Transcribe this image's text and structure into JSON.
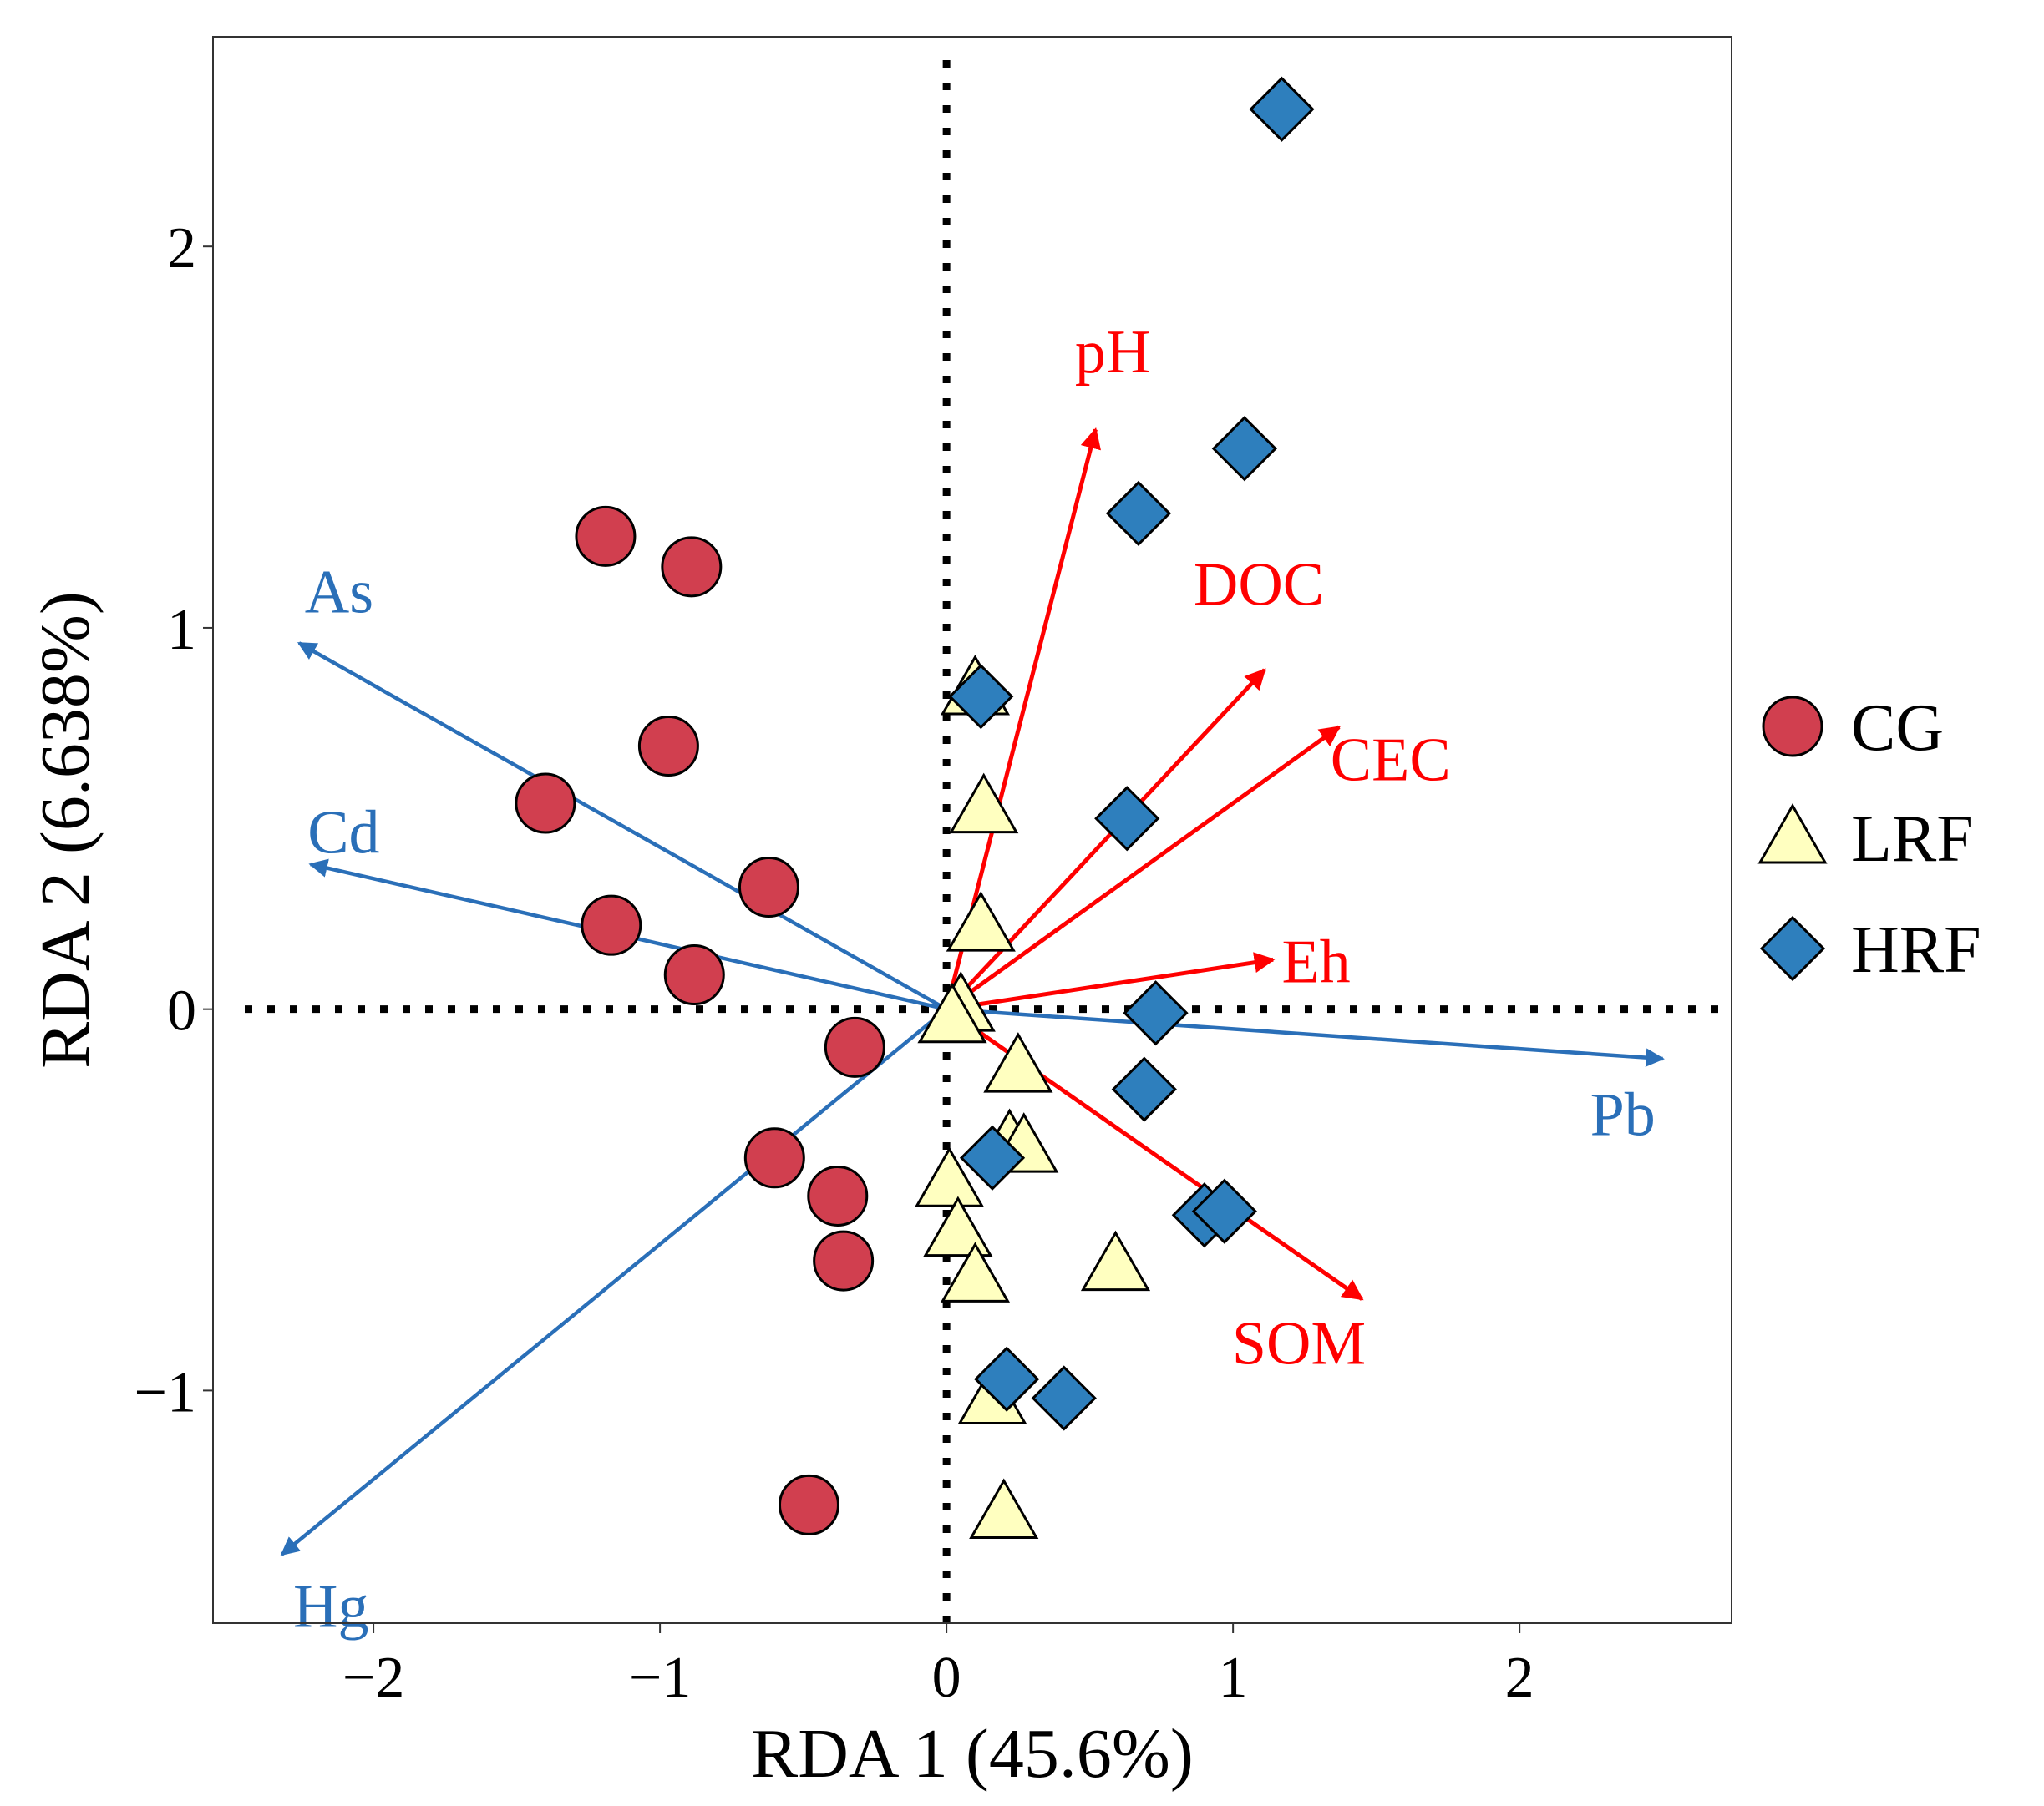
{
  "chart_data": {
    "type": "scatter",
    "title": "",
    "xlabel": "RDA 1 (45.6%)",
    "ylabel": "RDA 2 (6.638%)",
    "xlim": [
      -2.56,
      2.74
    ],
    "ylim": [
      -1.61,
      2.55
    ],
    "xticks": [
      -2,
      -1,
      0,
      1,
      2
    ],
    "yticks": [
      -1,
      0,
      1,
      2
    ],
    "xtick_labels": [
      "−2",
      "−1",
      "0",
      "1",
      "2"
    ],
    "ytick_labels": [
      "−1",
      "0",
      "1",
      "2"
    ],
    "grid": false,
    "reference_lines": {
      "x": 0,
      "y": 0,
      "style": "dotted"
    },
    "legend_position": "right",
    "series": [
      {
        "name": "CG",
        "marker": "circle",
        "color": "#d13f4f",
        "points": [
          [
            -1.19,
            1.24
          ],
          [
            -0.89,
            1.16
          ],
          [
            -0.97,
            0.69
          ],
          [
            -1.4,
            0.54
          ],
          [
            -0.62,
            0.32
          ],
          [
            -1.17,
            0.22
          ],
          [
            -0.88,
            0.09
          ],
          [
            -0.32,
            -0.1
          ],
          [
            -0.6,
            -0.39
          ],
          [
            -0.38,
            -0.49
          ],
          [
            -0.36,
            -0.66
          ],
          [
            -0.48,
            -1.3
          ]
        ]
      },
      {
        "name": "LRF",
        "marker": "triangle",
        "color": "#ffffc0",
        "points": [
          [
            0.1,
            0.84
          ],
          [
            0.13,
            0.53
          ],
          [
            0.12,
            0.22
          ],
          [
            0.05,
            0.01
          ],
          [
            0.02,
            -0.02
          ],
          [
            0.25,
            -0.15
          ],
          [
            0.22,
            -0.35
          ],
          [
            0.27,
            -0.36
          ],
          [
            0.01,
            -0.45
          ],
          [
            0.04,
            -0.58
          ],
          [
            0.1,
            -0.7
          ],
          [
            0.59,
            -0.67
          ],
          [
            0.16,
            -1.02
          ],
          [
            0.2,
            -1.32
          ]
        ]
      },
      {
        "name": "HRF",
        "marker": "diamond",
        "color": "#2e7fbd",
        "points": [
          [
            1.17,
            2.36
          ],
          [
            1.04,
            1.47
          ],
          [
            0.67,
            1.3
          ],
          [
            0.12,
            0.82
          ],
          [
            0.63,
            0.5
          ],
          [
            0.73,
            -0.01
          ],
          [
            0.69,
            -0.21
          ],
          [
            0.16,
            -0.39
          ],
          [
            0.9,
            -0.54
          ],
          [
            0.97,
            -0.53
          ],
          [
            0.21,
            -0.97
          ],
          [
            0.41,
            -1.02
          ]
        ]
      }
    ],
    "vectors": [
      {
        "name": "pH",
        "x": 0.52,
        "y": 1.52,
        "color": "#ff0000",
        "anchor": "middle",
        "dx": 0.06,
        "dy": 0.15
      },
      {
        "name": "DOC",
        "x": 1.11,
        "y": 0.89,
        "color": "#ff0000",
        "anchor": "middle",
        "dx": -0.02,
        "dy": 0.17
      },
      {
        "name": "CEC",
        "x": 1.37,
        "y": 0.74,
        "color": "#ff0000",
        "anchor": "start",
        "dx": -0.03,
        "dy": -0.14
      },
      {
        "name": "Eh",
        "x": 1.14,
        "y": 0.13,
        "color": "#ff0000",
        "anchor": "start",
        "dx": 0.03,
        "dy": -0.06
      },
      {
        "name": "SOM",
        "x": 1.45,
        "y": -0.76,
        "color": "#ff0000",
        "anchor": "middle",
        "dx": -0.22,
        "dy": -0.17
      },
      {
        "name": "As",
        "x": -2.26,
        "y": 0.96,
        "color": "#2a6fb8",
        "anchor": "start",
        "dx": 0.02,
        "dy": 0.08
      },
      {
        "name": "Cd",
        "x": -2.22,
        "y": 0.38,
        "color": "#2a6fb8",
        "anchor": "start",
        "dx": -0.01,
        "dy": 0.03
      },
      {
        "name": "Pb",
        "x": 2.5,
        "y": -0.13,
        "color": "#2a6fb8",
        "anchor": "middle",
        "dx": -0.14,
        "dy": -0.2
      },
      {
        "name": "Hg",
        "x": -2.32,
        "y": -1.43,
        "color": "#2a6fb8",
        "anchor": "start",
        "dx": 0.04,
        "dy": -0.19
      }
    ]
  },
  "legend": {
    "items": [
      {
        "label": "CG",
        "marker": "circle",
        "color": "#d13f4f"
      },
      {
        "label": "LRF",
        "marker": "triangle",
        "color": "#ffffc0"
      },
      {
        "label": "HRF",
        "marker": "diamond",
        "color": "#2e7fbd"
      }
    ]
  }
}
